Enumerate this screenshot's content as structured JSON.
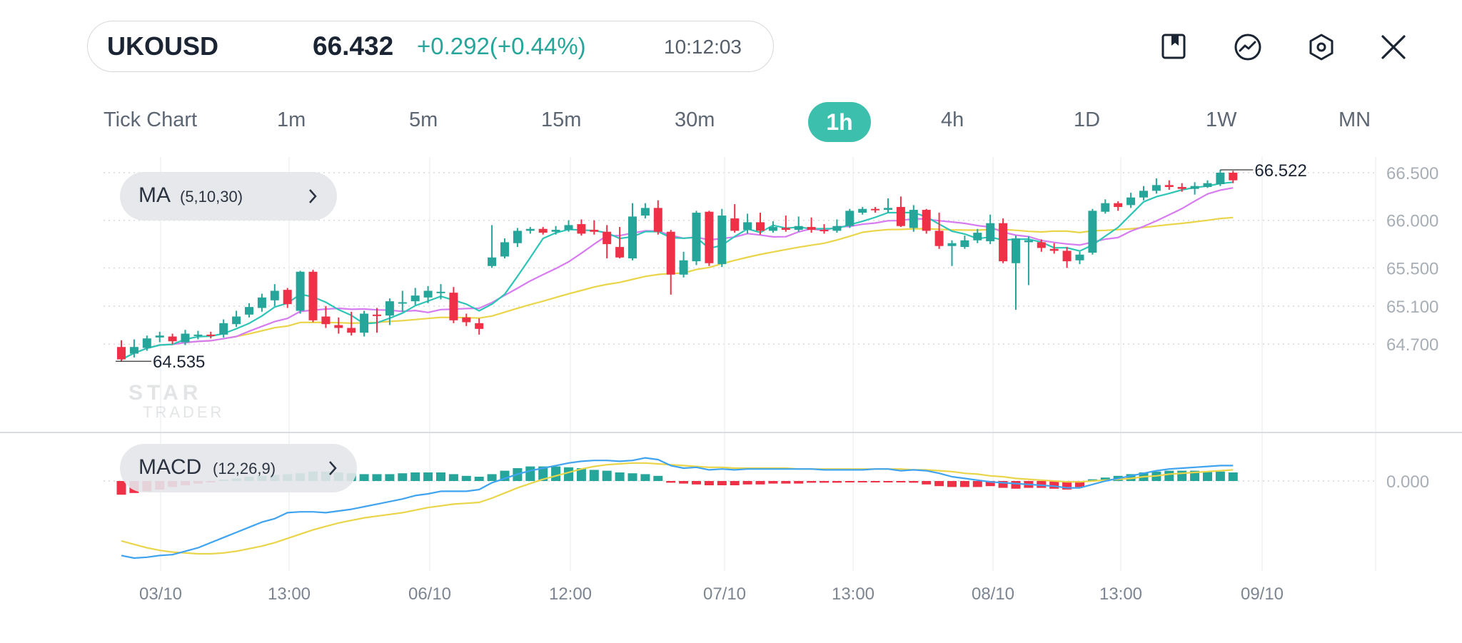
{
  "header": {
    "symbol": "UKOUSD",
    "price": "66.432",
    "change": "+0.292(+0.44%)",
    "time": "10:12:03"
  },
  "toolbar": {
    "icons": [
      "bookmark-icon",
      "indicator-icon",
      "settings-icon",
      "close-icon"
    ]
  },
  "timeframes": {
    "items": [
      "Tick Chart",
      "1m",
      "5m",
      "15m",
      "30m",
      "1h",
      "4h",
      "1D",
      "1W",
      "MN"
    ],
    "active": "1h"
  },
  "indicators": {
    "ma": {
      "name": "MA",
      "params": "(5,10,30)"
    },
    "macd": {
      "name": "MACD",
      "params": "(12,26,9)"
    }
  },
  "colors": {
    "up": "#26a69a",
    "down": "#ef3148",
    "ma5": "#2dc5b6",
    "ma10": "#d77bf0",
    "ma30": "#ead54a",
    "macd_line": "#3fa3f0",
    "signal_line": "#ead54a",
    "accent": "#3dbfae"
  },
  "chart_data": [
    {
      "type": "candlestick",
      "y_ticks": [
        "66.500",
        "66.000",
        "65.500",
        "65.100",
        "64.700"
      ],
      "ylim": [
        64.45,
        66.63
      ],
      "x_ticks": [
        "03/10",
        "13:00",
        "06/10",
        "12:00",
        "07/10",
        "13:00",
        "08/10",
        "13:00",
        "09/10"
      ],
      "high_label": "66.522",
      "low_label": "64.535",
      "candles": [
        [
          64.67,
          64.54,
          64.74,
          64.52
        ],
        [
          64.6,
          64.67,
          64.75,
          64.56
        ],
        [
          64.66,
          64.76,
          64.79,
          64.63
        ],
        [
          64.77,
          64.79,
          64.83,
          64.72
        ],
        [
          64.78,
          64.73,
          64.81,
          64.7
        ],
        [
          64.72,
          64.81,
          64.85,
          64.69
        ],
        [
          64.79,
          64.8,
          64.84,
          64.75
        ],
        [
          64.8,
          64.79,
          64.83,
          64.76
        ],
        [
          64.8,
          64.92,
          64.96,
          64.77
        ],
        [
          64.91,
          64.99,
          65.05,
          64.88
        ],
        [
          65.01,
          65.09,
          65.13,
          64.98
        ],
        [
          65.08,
          65.19,
          65.23,
          65.04
        ],
        [
          65.16,
          65.26,
          65.33,
          65.1
        ],
        [
          65.27,
          65.12,
          65.29,
          65.08
        ],
        [
          65.05,
          65.46,
          65.47,
          65.02
        ],
        [
          65.46,
          64.95,
          65.48,
          64.93
        ],
        [
          64.99,
          64.91,
          65.1,
          64.87
        ],
        [
          64.9,
          64.87,
          64.98,
          64.81
        ],
        [
          64.87,
          64.82,
          65.04,
          64.79
        ],
        [
          64.82,
          65.02,
          65.05,
          64.78
        ],
        [
          65.01,
          65.0,
          65.08,
          64.82
        ],
        [
          65.0,
          65.15,
          65.18,
          64.9
        ],
        [
          65.13,
          65.14,
          65.26,
          65.04
        ],
        [
          65.15,
          65.21,
          65.29,
          65.11
        ],
        [
          65.19,
          65.26,
          65.31,
          65.13
        ],
        [
          65.25,
          65.25,
          65.33,
          65.17
        ],
        [
          65.24,
          64.95,
          65.3,
          64.92
        ],
        [
          64.98,
          64.93,
          65.02,
          64.89
        ],
        [
          64.92,
          64.86,
          64.97,
          64.8
        ],
        [
          65.52,
          65.61,
          65.95,
          65.5
        ],
        [
          65.62,
          65.77,
          65.81,
          65.6
        ],
        [
          65.76,
          65.89,
          65.92,
          65.72
        ],
        [
          65.89,
          65.91,
          65.93,
          65.86
        ],
        [
          65.91,
          65.87,
          65.93,
          65.85
        ],
        [
          65.88,
          65.9,
          65.94,
          65.85
        ],
        [
          65.9,
          65.95,
          66.0,
          65.88
        ],
        [
          65.96,
          65.86,
          66.01,
          65.84
        ],
        [
          65.9,
          65.88,
          66.0,
          65.85
        ],
        [
          65.88,
          65.75,
          65.95,
          65.6
        ],
        [
          65.72,
          65.61,
          65.93,
          65.6
        ],
        [
          65.6,
          66.04,
          66.18,
          65.58
        ],
        [
          66.05,
          66.13,
          66.18,
          66.02
        ],
        [
          66.13,
          65.88,
          66.21,
          65.85
        ],
        [
          65.88,
          65.43,
          65.9,
          65.22
        ],
        [
          65.43,
          65.58,
          65.67,
          65.4
        ],
        [
          65.57,
          66.08,
          66.1,
          65.53
        ],
        [
          66.09,
          65.55,
          66.1,
          65.52
        ],
        [
          65.54,
          66.05,
          66.12,
          65.51
        ],
        [
          66.02,
          65.89,
          66.17,
          65.87
        ],
        [
          65.9,
          65.98,
          66.07,
          65.86
        ],
        [
          65.98,
          65.89,
          66.08,
          65.85
        ],
        [
          65.89,
          65.93,
          65.99,
          65.87
        ],
        [
          65.92,
          65.9,
          66.05,
          65.88
        ],
        [
          65.9,
          65.94,
          66.04,
          65.88
        ],
        [
          65.93,
          65.9,
          66.03,
          65.87
        ],
        [
          65.9,
          65.89,
          65.96,
          65.86
        ],
        [
          65.89,
          65.94,
          66.01,
          65.87
        ],
        [
          65.94,
          66.1,
          66.12,
          65.92
        ],
        [
          66.08,
          66.12,
          66.14,
          66.06
        ],
        [
          66.12,
          66.11,
          66.14,
          66.08
        ],
        [
          66.11,
          66.13,
          66.23,
          66.08
        ],
        [
          66.14,
          65.94,
          66.25,
          65.93
        ],
        [
          65.92,
          66.11,
          66.16,
          65.88
        ],
        [
          66.11,
          65.89,
          66.12,
          65.86
        ],
        [
          65.89,
          65.73,
          66.08,
          65.7
        ],
        [
          65.73,
          65.76,
          65.79,
          65.52
        ],
        [
          65.72,
          65.79,
          65.84,
          65.7
        ],
        [
          65.79,
          65.87,
          65.91,
          65.76
        ],
        [
          65.78,
          65.97,
          66.06,
          65.75
        ],
        [
          65.97,
          65.57,
          66.02,
          65.55
        ],
        [
          65.55,
          65.81,
          65.84,
          65.06
        ],
        [
          65.77,
          65.79,
          65.83,
          65.32
        ],
        [
          65.77,
          65.71,
          65.8,
          65.67
        ],
        [
          65.7,
          65.68,
          65.76,
          65.65
        ],
        [
          65.68,
          65.57,
          65.72,
          65.5
        ],
        [
          65.58,
          65.64,
          65.67,
          65.54
        ],
        [
          65.66,
          66.1,
          66.12,
          65.64
        ],
        [
          66.09,
          66.18,
          66.22,
          66.07
        ],
        [
          66.18,
          66.14,
          66.2,
          66.1
        ],
        [
          66.16,
          66.24,
          66.29,
          66.13
        ],
        [
          66.24,
          66.31,
          66.36,
          66.21
        ],
        [
          66.31,
          66.37,
          66.44,
          66.28
        ],
        [
          66.37,
          66.35,
          66.42,
          66.32
        ],
        [
          66.35,
          66.33,
          66.39,
          66.3
        ],
        [
          66.33,
          66.36,
          66.4,
          66.27
        ],
        [
          66.35,
          66.39,
          66.42,
          66.34
        ],
        [
          66.38,
          66.5,
          66.53,
          66.36
        ],
        [
          66.5,
          66.42,
          66.52,
          66.39
        ]
      ]
    },
    {
      "type": "bar+line",
      "title": "MACD",
      "y_ticks": [
        "0.000"
      ],
      "ylim": [
        -1.0,
        0.35
      ],
      "histogram": [
        -0.16,
        -0.14,
        -0.12,
        -0.1,
        -0.07,
        -0.05,
        -0.03,
        -0.01,
        0.01,
        0.03,
        0.05,
        0.06,
        0.07,
        0.08,
        0.09,
        0.11,
        0.11,
        0.1,
        0.09,
        0.08,
        0.08,
        0.08,
        0.09,
        0.1,
        0.1,
        0.1,
        0.08,
        0.06,
        0.05,
        0.08,
        0.12,
        0.15,
        0.17,
        0.17,
        0.17,
        0.16,
        0.15,
        0.13,
        0.12,
        0.1,
        0.09,
        0.08,
        0.06,
        -0.02,
        -0.03,
        -0.04,
        -0.05,
        -0.05,
        -0.05,
        -0.04,
        -0.04,
        -0.03,
        -0.03,
        -0.03,
        -0.02,
        -0.02,
        -0.02,
        -0.01,
        -0.01,
        -0.01,
        -0.01,
        -0.01,
        -0.02,
        -0.04,
        -0.06,
        -0.07,
        -0.07,
        -0.07,
        -0.06,
        -0.08,
        -0.09,
        -0.08,
        -0.08,
        -0.09,
        -0.1,
        -0.07,
        0.02,
        0.04,
        0.06,
        0.08,
        0.1,
        0.11,
        0.12,
        0.12,
        0.12,
        0.11,
        0.11,
        0.1
      ],
      "macd": [
        -0.87,
        -0.9,
        -0.89,
        -0.87,
        -0.86,
        -0.82,
        -0.78,
        -0.72,
        -0.66,
        -0.6,
        -0.54,
        -0.48,
        -0.44,
        -0.37,
        -0.36,
        -0.36,
        -0.37,
        -0.35,
        -0.33,
        -0.3,
        -0.27,
        -0.24,
        -0.21,
        -0.17,
        -0.15,
        -0.12,
        -0.12,
        -0.12,
        -0.1,
        -0.02,
        0.03,
        0.08,
        0.12,
        0.15,
        0.18,
        0.21,
        0.23,
        0.24,
        0.24,
        0.23,
        0.24,
        0.27,
        0.25,
        0.18,
        0.15,
        0.16,
        0.13,
        0.14,
        0.13,
        0.14,
        0.14,
        0.14,
        0.14,
        0.14,
        0.14,
        0.13,
        0.13,
        0.13,
        0.13,
        0.14,
        0.14,
        0.12,
        0.13,
        0.12,
        0.09,
        0.05,
        0.03,
        0.01,
        -0.01,
        -0.02,
        -0.03,
        -0.04,
        -0.05,
        -0.06,
        -0.08,
        -0.08,
        -0.04,
        0.0,
        0.03,
        0.06,
        0.09,
        0.12,
        0.14,
        0.15,
        0.16,
        0.17,
        0.18,
        0.18
      ],
      "signal": [
        -0.7,
        -0.74,
        -0.78,
        -0.81,
        -0.83,
        -0.84,
        -0.85,
        -0.85,
        -0.84,
        -0.82,
        -0.79,
        -0.76,
        -0.72,
        -0.67,
        -0.62,
        -0.57,
        -0.53,
        -0.49,
        -0.46,
        -0.43,
        -0.41,
        -0.39,
        -0.37,
        -0.34,
        -0.31,
        -0.29,
        -0.27,
        -0.26,
        -0.25,
        -0.2,
        -0.14,
        -0.08,
        -0.03,
        0.02,
        0.06,
        0.1,
        0.14,
        0.17,
        0.19,
        0.2,
        0.21,
        0.21,
        0.2,
        0.19,
        0.18,
        0.17,
        0.16,
        0.16,
        0.15,
        0.15,
        0.15,
        0.15,
        0.15,
        0.14,
        0.14,
        0.14,
        0.14,
        0.14,
        0.14,
        0.14,
        0.14,
        0.14,
        0.13,
        0.13,
        0.12,
        0.11,
        0.09,
        0.08,
        0.06,
        0.05,
        0.03,
        0.02,
        0.01,
        0.0,
        -0.01,
        -0.01,
        0.0,
        0.01,
        0.02,
        0.03,
        0.05,
        0.06,
        0.08,
        0.09,
        0.1,
        0.11,
        0.12,
        0.13
      ]
    }
  ]
}
